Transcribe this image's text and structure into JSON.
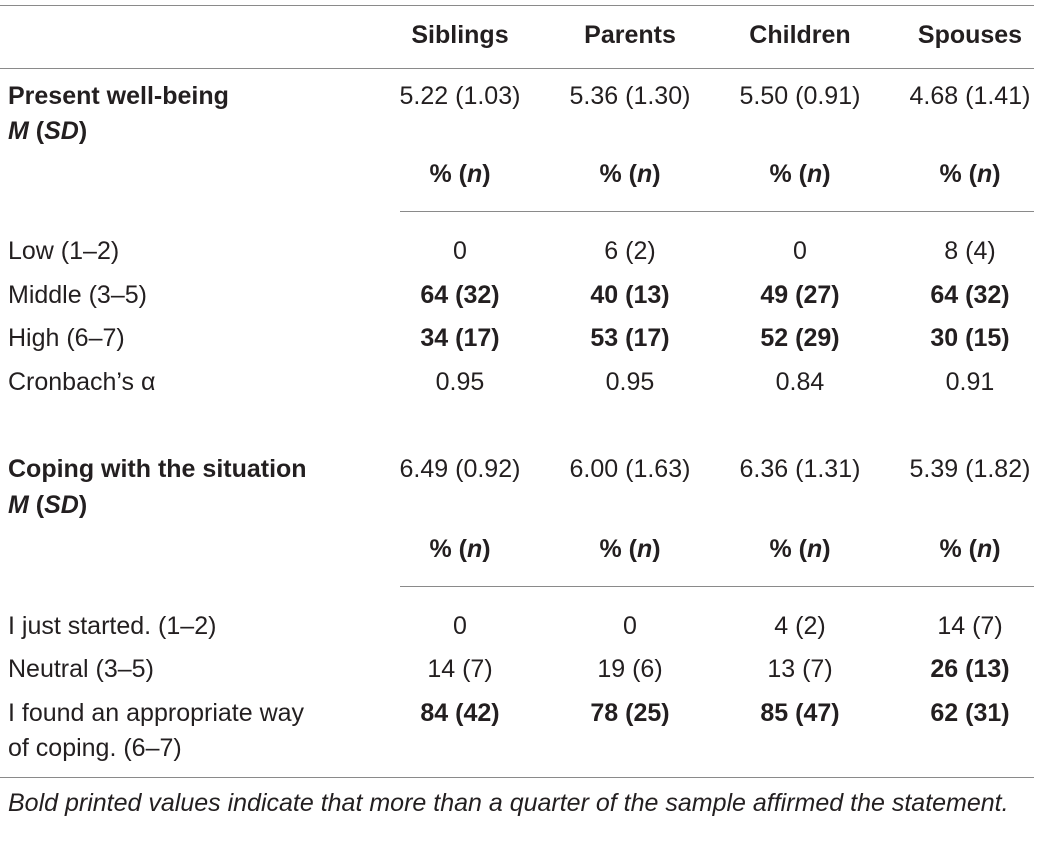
{
  "columns": [
    "Siblings",
    "Parents",
    "Children",
    "Spouses"
  ],
  "section1": {
    "title": "Present well-being",
    "stat_m": "M",
    "stat_sd": "SD",
    "means": [
      "5.22 (1.03)",
      "5.36 (1.30)",
      "5.50 (0.91)",
      "4.68 (1.41)"
    ],
    "pct_header": "% (",
    "pct_n": "n",
    "rows": [
      {
        "label": "Low (1–2)",
        "values": [
          "0",
          "6 (2)",
          "0",
          "8 (4)"
        ],
        "bold": [
          false,
          false,
          false,
          false
        ]
      },
      {
        "label": "Middle (3–5)",
        "values": [
          "64 (32)",
          "40 (13)",
          "49 (27)",
          "64 (32)"
        ],
        "bold": [
          true,
          true,
          true,
          true
        ]
      },
      {
        "label": "High (6–7)",
        "values": [
          "34 (17)",
          "53 (17)",
          "52 (29)",
          "30 (15)"
        ],
        "bold": [
          true,
          true,
          true,
          true
        ]
      },
      {
        "label": "Cronbach’s α",
        "values": [
          "0.95",
          "0.95",
          "0.84",
          "0.91"
        ],
        "bold": [
          false,
          false,
          false,
          false
        ]
      }
    ]
  },
  "section2": {
    "title": "Coping with the situation",
    "stat_m": "M",
    "stat_sd": "SD",
    "means": [
      "6.49 (0.92)",
      "6.00 (1.63)",
      "6.36 (1.31)",
      "5.39 (1.82)"
    ],
    "pct_header": "% (",
    "pct_n": "n",
    "rows": [
      {
        "label": "I just started. (1–2)",
        "values": [
          "0",
          "0",
          "4 (2)",
          "14 (7)"
        ],
        "bold": [
          false,
          false,
          false,
          false
        ]
      },
      {
        "label": "Neutral (3–5)",
        "values": [
          "14 (7)",
          "19 (6)",
          "13 (7)",
          "26 (13)"
        ],
        "bold": [
          false,
          false,
          false,
          true
        ]
      },
      {
        "label": "I found an appropriate way",
        "label2": "of coping. (6–7)",
        "values": [
          "84 (42)",
          "78 (25)",
          "85 (47)",
          "62 (31)"
        ],
        "bold": [
          true,
          true,
          true,
          true
        ]
      }
    ]
  },
  "footnote": "Bold printed values indicate that more than a quarter of the sample affirmed the statement."
}
